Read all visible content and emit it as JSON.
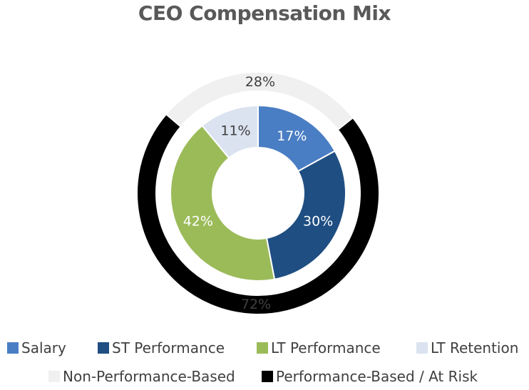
{
  "chart_data": {
    "type": "donut",
    "title": "CEO Compensation Mix",
    "inner_ring": {
      "categories": [
        "Salary",
        "ST Performance",
        "LT Performance",
        "LT Retention"
      ],
      "values": [
        17,
        30,
        42,
        11
      ],
      "labels": [
        "17%",
        "30%",
        "42%",
        "11%"
      ],
      "colors": [
        "#4A7EC4",
        "#1F4E82",
        "#9BBB59",
        "#DBE3F0"
      ],
      "label_colors": [
        "#ffffff",
        "#ffffff",
        "#ffffff",
        "#404040"
      ]
    },
    "outer_ring": {
      "categories": [
        "Non-Performance-Based",
        "Performance-Based / At Risk"
      ],
      "values": [
        28,
        72
      ],
      "labels": [
        "28%",
        "72%"
      ],
      "colors": [
        "#F0F0F0",
        "#000000"
      ]
    },
    "legend": [
      {
        "label": "Salary",
        "color": "#4A7EC4"
      },
      {
        "label": "ST Performance",
        "color": "#1F4E82"
      },
      {
        "label": "LT Performance",
        "color": "#9BBB59"
      },
      {
        "label": "LT Retention",
        "color": "#DBE3F0"
      },
      {
        "label": "Non-Performance-Based",
        "color": "#F0F0F0"
      },
      {
        "label": "Performance-Based / At Risk",
        "color": "#000000"
      }
    ]
  }
}
